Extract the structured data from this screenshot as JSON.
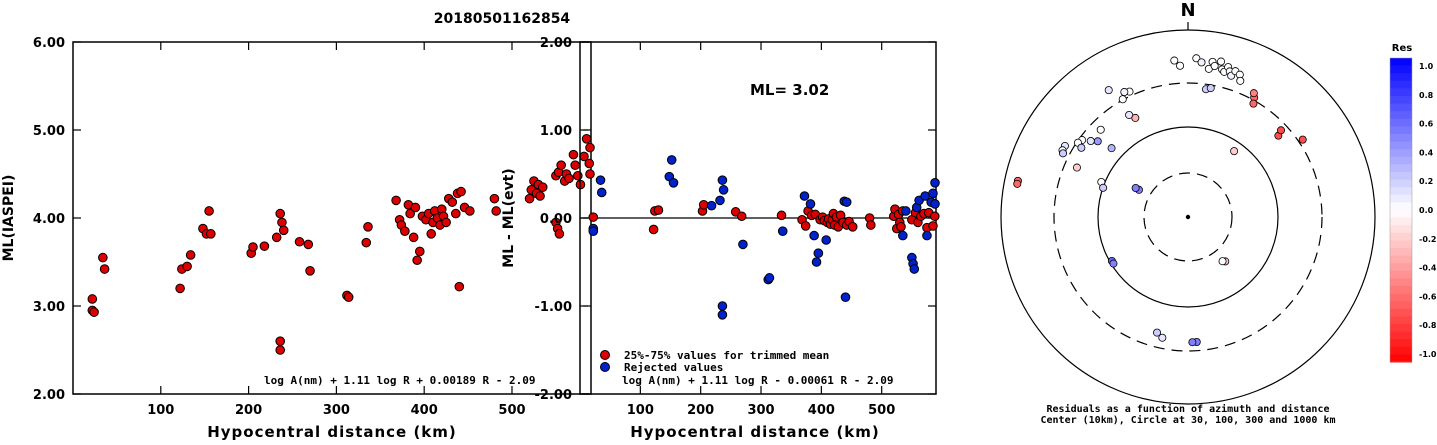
{
  "figure": {
    "event_id": "20180501162854"
  },
  "chart_data": [
    {
      "type": "scatter",
      "xlabel": "Hypocentral distance (km)",
      "ylabel": "ML(IASPEI)",
      "xlim": [
        0,
        590
      ],
      "ylim": [
        2.0,
        6.0
      ],
      "xticks": [
        "100",
        "200",
        "300",
        "400",
        "500"
      ],
      "yticks": [
        "2.00",
        "3.00",
        "4.00",
        "5.00",
        "6.00"
      ],
      "formula": "log A(nm) + 1.11 log R + 0.00189 R - 2.09",
      "point_color": "#dd0000",
      "points": [
        [
          22,
          3.08
        ],
        [
          22,
          2.95
        ],
        [
          24,
          2.93
        ],
        [
          34,
          3.55
        ],
        [
          36,
          3.42
        ],
        [
          122,
          3.2
        ],
        [
          124,
          3.42
        ],
        [
          130,
          3.45
        ],
        [
          134,
          3.58
        ],
        [
          148,
          3.88
        ],
        [
          152,
          3.82
        ],
        [
          155,
          4.08
        ],
        [
          157,
          3.82
        ],
        [
          203,
          3.6
        ],
        [
          205,
          3.67
        ],
        [
          218,
          3.68
        ],
        [
          232,
          3.78
        ],
        [
          236,
          4.05
        ],
        [
          238,
          3.95
        ],
        [
          240,
          3.86
        ],
        [
          236,
          2.6
        ],
        [
          236,
          2.5
        ],
        [
          258,
          3.73
        ],
        [
          268,
          3.7
        ],
        [
          270,
          3.4
        ],
        [
          312,
          3.12
        ],
        [
          314,
          3.1
        ],
        [
          334,
          3.72
        ],
        [
          336,
          3.9
        ],
        [
          368,
          4.2
        ],
        [
          372,
          3.98
        ],
        [
          374,
          3.92
        ],
        [
          378,
          3.85
        ],
        [
          382,
          4.15
        ],
        [
          384,
          4.05
        ],
        [
          388,
          3.78
        ],
        [
          390,
          4.12
        ],
        [
          392,
          3.52
        ],
        [
          395,
          3.62
        ],
        [
          398,
          4.02
        ],
        [
          402,
          3.98
        ],
        [
          405,
          4.05
        ],
        [
          408,
          3.82
        ],
        [
          410,
          3.95
        ],
        [
          412,
          4.08
        ],
        [
          415,
          4.0
        ],
        [
          418,
          3.92
        ],
        [
          420,
          4.1
        ],
        [
          422,
          4.02
        ],
        [
          425,
          3.95
        ],
        [
          428,
          4.22
        ],
        [
          432,
          4.18
        ],
        [
          436,
          4.05
        ],
        [
          438,
          4.28
        ],
        [
          440,
          3.22
        ],
        [
          442,
          4.3
        ],
        [
          446,
          4.12
        ],
        [
          452,
          4.08
        ],
        [
          480,
          4.22
        ],
        [
          482,
          4.08
        ],
        [
          520,
          4.22
        ],
        [
          522,
          4.32
        ],
        [
          525,
          4.42
        ],
        [
          528,
          4.28
        ],
        [
          530,
          4.38
        ],
        [
          532,
          4.25
        ],
        [
          535,
          4.35
        ],
        [
          550,
          3.95
        ],
        [
          552,
          3.88
        ],
        [
          554,
          3.82
        ],
        [
          550,
          4.48
        ],
        [
          553,
          4.52
        ],
        [
          556,
          4.6
        ],
        [
          560,
          4.42
        ],
        [
          562,
          4.5
        ],
        [
          565,
          4.45
        ],
        [
          570,
          4.72
        ],
        [
          572,
          4.6
        ],
        [
          575,
          4.48
        ],
        [
          578,
          4.38
        ],
        [
          582,
          4.7
        ],
        [
          585,
          4.9
        ],
        [
          588,
          4.62
        ],
        [
          590,
          4.5
        ],
        [
          590,
          4.8
        ]
      ]
    },
    {
      "type": "scatter",
      "xlabel": "Hypocentral distance (km)",
      "ylabel": "ML - ML(evt)",
      "xlim": [
        0,
        590
      ],
      "ylim": [
        -2.0,
        2.0
      ],
      "xticks": [
        "100",
        "200",
        "300",
        "400",
        "500"
      ],
      "yticks": [
        "-2.00",
        "-1.00",
        "0.00",
        "1.00",
        "2.00"
      ],
      "annotation": "ML= 3.02",
      "formula": "log A(nm) + 1.11 log R - 0.00061 R - 2.09",
      "series": [
        {
          "name": "25%-75% values for trimmed mean",
          "color": "#dd0000",
          "points": [
            [
              22,
              0.01
            ],
            [
              122,
              -0.13
            ],
            [
              124,
              0.08
            ],
            [
              130,
              0.09
            ],
            [
              203,
              0.08
            ],
            [
              205,
              0.15
            ],
            [
              258,
              0.07
            ],
            [
              268,
              0.02
            ],
            [
              334,
              0.03
            ],
            [
              368,
              -0.02
            ],
            [
              374,
              -0.09
            ],
            [
              378,
              0.08
            ],
            [
              384,
              0.03
            ],
            [
              390,
              0.04
            ],
            [
              398,
              -0.02
            ],
            [
              402,
              0.01
            ],
            [
              405,
              -0.03
            ],
            [
              410,
              -0.05
            ],
            [
              412,
              -0.01
            ],
            [
              415,
              -0.07
            ],
            [
              418,
              -0.02
            ],
            [
              420,
              0.05
            ],
            [
              422,
              -0.08
            ],
            [
              425,
              0.01
            ],
            [
              428,
              -0.1
            ],
            [
              432,
              0.03
            ],
            [
              436,
              -0.05
            ],
            [
              442,
              -0.08
            ],
            [
              446,
              -0.04
            ],
            [
              452,
              -0.1
            ],
            [
              480,
              0.0
            ],
            [
              482,
              -0.08
            ],
            [
              520,
              0.02
            ],
            [
              522,
              0.1
            ],
            [
              525,
              -0.12
            ],
            [
              528,
              0.04
            ],
            [
              530,
              -0.05
            ],
            [
              532,
              -0.1
            ],
            [
              535,
              0.08
            ],
            [
              550,
              -0.02
            ],
            [
              556,
              0.06
            ],
            [
              560,
              -0.05
            ],
            [
              565,
              0.02
            ],
            [
              570,
              0.05
            ],
            [
              575,
              -0.11
            ],
            [
              578,
              0.06
            ],
            [
              585,
              -0.09
            ],
            [
              588,
              0.02
            ]
          ]
        },
        {
          "name": "Rejected values",
          "color": "#0022cc",
          "points": [
            [
              22,
              -0.12
            ],
            [
              22,
              -0.15
            ],
            [
              34,
              0.43
            ],
            [
              36,
              0.29
            ],
            [
              148,
              0.47
            ],
            [
              152,
              0.66
            ],
            [
              155,
              0.4
            ],
            [
              218,
              0.14
            ],
            [
              232,
              0.2
            ],
            [
              236,
              0.43
            ],
            [
              238,
              0.32
            ],
            [
              236,
              -1.0
            ],
            [
              236,
              -1.1
            ],
            [
              270,
              -0.3
            ],
            [
              312,
              -0.7
            ],
            [
              314,
              -0.68
            ],
            [
              336,
              -0.15
            ],
            [
              372,
              0.25
            ],
            [
              382,
              0.16
            ],
            [
              388,
              -0.2
            ],
            [
              392,
              -0.5
            ],
            [
              395,
              -0.4
            ],
            [
              408,
              -0.25
            ],
            [
              438,
              0.19
            ],
            [
              440,
              -0.9
            ],
            [
              442,
              0.18
            ],
            [
              535,
              -0.2
            ],
            [
              540,
              0.08
            ],
            [
              550,
              -0.45
            ],
            [
              552,
              -0.52
            ],
            [
              554,
              -0.58
            ],
            [
              558,
              0.12
            ],
            [
              562,
              0.2
            ],
            [
              572,
              0.25
            ],
            [
              575,
              -0.2
            ],
            [
              582,
              0.18
            ],
            [
              585,
              0.28
            ],
            [
              590,
              0.4
            ],
            [
              590,
              0.16
            ]
          ]
        }
      ]
    },
    {
      "type": "polar-scatter",
      "north_label": "N",
      "caption_line1": "Residuals as a function of azimuth and distance",
      "caption_line2": "Center (10km), Circle at 30, 100, 300 and 1000 km",
      "point_note": "points as [azimuth_deg, relative_radius, residual]",
      "points": [
        [
          3,
          0.85,
          0.0
        ],
        [
          5,
          0.83,
          0.05
        ],
        [
          8,
          0.8,
          0.0
        ],
        [
          9,
          0.84,
          0.0
        ],
        [
          10,
          0.82,
          0.0
        ],
        [
          12,
          0.85,
          0.0
        ],
        [
          13,
          0.81,
          0.0
        ],
        [
          14,
          0.8,
          0.0
        ],
        [
          15,
          0.83,
          0.0
        ],
        [
          16,
          0.81,
          0.0
        ],
        [
          17,
          0.79,
          0.05
        ],
        [
          18,
          0.82,
          0.0
        ],
        [
          20,
          0.81,
          0.0
        ],
        [
          21,
          0.78,
          0.0
        ],
        [
          8,
          0.69,
          0.2
        ],
        [
          10,
          0.7,
          0.2
        ],
        [
          -5,
          0.84,
          0.0
        ],
        [
          -3,
          0.81,
          0.0
        ],
        [
          29,
          0.73,
          -0.6
        ],
        [
          30,
          0.7,
          -0.6
        ],
        [
          28,
          0.75,
          -0.5
        ],
        [
          48,
          0.65,
          -0.7
        ],
        [
          47,
          0.68,
          -0.7
        ],
        [
          56,
          0.74,
          -0.7
        ],
        [
          35,
          0.43,
          -0.2
        ],
        [
          -25,
          0.74,
          0.0
        ],
        [
          -27,
          0.75,
          0.05
        ],
        [
          -29,
          0.72,
          0.0
        ],
        [
          -32,
          0.8,
          0.1
        ],
        [
          -28,
          0.6,
          -0.3
        ],
        [
          -30,
          0.63,
          0.1
        ],
        [
          -45,
          0.66,
          0.0
        ],
        [
          -48,
          0.55,
          0.3
        ],
        [
          -50,
          0.63,
          0.4
        ],
        [
          -52,
          0.66,
          0.1
        ],
        [
          -54,
          0.7,
          0.0
        ],
        [
          -56,
          0.71,
          0.0
        ],
        [
          -57,
          0.68,
          0.2
        ],
        [
          -60,
          0.76,
          0.1
        ],
        [
          -62,
          0.76,
          0.0
        ],
        [
          -63,
          0.75,
          0.2
        ],
        [
          -66,
          0.65,
          -0.2
        ],
        [
          -68,
          0.5,
          0.0
        ],
        [
          -71,
          0.48,
          0.2
        ],
        [
          -61,
          0.3,
          0.5
        ],
        [
          -61,
          0.32,
          0.5
        ],
        [
          -78,
          0.93,
          -0.6
        ],
        [
          -79,
          0.93,
          -0.6
        ],
        [
          -120,
          0.47,
          0.6
        ],
        [
          -122,
          0.47,
          0.5
        ],
        [
          -165,
          0.64,
          0.2
        ],
        [
          -168,
          0.66,
          0.1
        ],
        [
          176,
          0.67,
          0.5
        ],
        [
          178,
          0.67,
          0.5
        ],
        [
          140,
          0.31,
          -0.2
        ],
        [
          142,
          0.3,
          0.0
        ]
      ]
    }
  ],
  "colorbar": {
    "title": "Res",
    "ticks": [
      "1.0",
      "0.8",
      "0.6",
      "0.4",
      "0.2",
      "0.0",
      "-0.2",
      "-0.4",
      "-0.6",
      "-0.8",
      "-1.0"
    ]
  }
}
